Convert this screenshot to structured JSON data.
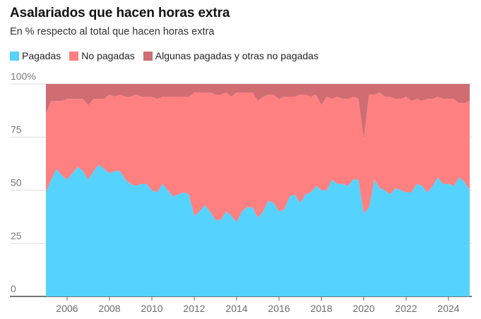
{
  "title": "Asalariados que hacen horas extra",
  "subtitle": "En % respecto al total que hacen horas extra",
  "colors": {
    "pagadas": "#56d2fe",
    "no_pagadas": "#ff8080",
    "algunas": "#cf6d73",
    "grid": "#dddddd",
    "axis": "#222222"
  },
  "chart_data": {
    "type": "area",
    "stacked": true,
    "ylim": [
      0,
      100
    ],
    "yticks": [
      0,
      25,
      50,
      75,
      100
    ],
    "ytick_labels": [
      "0",
      "25",
      "50",
      "75",
      "100%"
    ],
    "xticks": [
      2006,
      2008,
      2010,
      2012,
      2014,
      2016,
      2018,
      2020,
      2022,
      2024
    ],
    "xlim": [
      2004.9,
      2025.4
    ],
    "legend": [
      "Pagadas",
      "No pagadas",
      "Algunas pagadas y otras no pagadas"
    ],
    "x": [
      2005.0,
      2005.25,
      2005.5,
      2005.75,
      2006.0,
      2006.25,
      2006.5,
      2006.75,
      2007.0,
      2007.25,
      2007.5,
      2007.75,
      2008.0,
      2008.25,
      2008.5,
      2008.75,
      2009.0,
      2009.25,
      2009.5,
      2009.75,
      2010.0,
      2010.25,
      2010.5,
      2010.75,
      2011.0,
      2011.25,
      2011.5,
      2011.75,
      2012.0,
      2012.25,
      2012.5,
      2012.75,
      2013.0,
      2013.25,
      2013.5,
      2013.75,
      2014.0,
      2014.25,
      2014.5,
      2014.75,
      2015.0,
      2015.25,
      2015.5,
      2015.75,
      2016.0,
      2016.25,
      2016.5,
      2016.75,
      2017.0,
      2017.25,
      2017.5,
      2017.75,
      2018.0,
      2018.25,
      2018.5,
      2018.75,
      2019.0,
      2019.25,
      2019.5,
      2019.75,
      2020.0,
      2020.25,
      2020.5,
      2020.75,
      2021.0,
      2021.25,
      2021.5,
      2021.75,
      2022.0,
      2022.25,
      2022.5,
      2022.75,
      2023.0,
      2023.25,
      2023.5,
      2023.75,
      2024.0,
      2024.25,
      2024.5,
      2024.75,
      2025.0
    ],
    "series": [
      {
        "name": "Pagadas",
        "values": [
          49,
          55,
          60,
          57,
          55,
          58,
          61,
          59,
          55,
          59,
          62,
          60,
          58,
          59,
          59,
          55,
          53,
          52,
          53,
          53,
          50,
          49,
          53,
          50,
          47,
          48,
          49,
          48,
          38,
          40,
          43,
          40,
          36,
          36,
          40,
          38,
          35,
          40,
          42,
          42,
          37,
          40,
          45,
          44,
          40,
          41,
          47,
          48,
          44,
          48,
          49,
          52,
          50,
          50,
          55,
          53,
          53,
          52,
          55,
          55,
          39,
          42,
          55,
          51,
          50,
          48,
          51,
          50,
          49,
          49,
          53,
          52,
          49,
          52,
          56,
          53,
          53,
          52,
          56,
          54,
          50
        ]
      },
      {
        "name": "No pagadas",
        "values": [
          37,
          37,
          32,
          35,
          38,
          35,
          32,
          34,
          35,
          34,
          31,
          33,
          37,
          35,
          36,
          39,
          41,
          43,
          41,
          41,
          44,
          44,
          41,
          44,
          47,
          46,
          45,
          46,
          58,
          56,
          53,
          56,
          59,
          59,
          56,
          56,
          61,
          56,
          54,
          54,
          55,
          54,
          50,
          51,
          53,
          53,
          47,
          46,
          51,
          47,
          45,
          43,
          40,
          44,
          38,
          41,
          40,
          41,
          39,
          38,
          35,
          53,
          40,
          45,
          44,
          46,
          42,
          43,
          45,
          43,
          40,
          40,
          44,
          41,
          38,
          40,
          40,
          41,
          35,
          37,
          42
        ]
      },
      {
        "name": "Algunas pagadas y otras no pagadas",
        "values": [
          14,
          8,
          8,
          8,
          7,
          7,
          7,
          7,
          10,
          7,
          7,
          7,
          5,
          6,
          5,
          6,
          6,
          5,
          6,
          6,
          6,
          7,
          6,
          6,
          6,
          6,
          6,
          6,
          4,
          4,
          4,
          4,
          5,
          5,
          4,
          6,
          4,
          4,
          4,
          4,
          8,
          6,
          5,
          5,
          7,
          6,
          6,
          6,
          5,
          5,
          6,
          5,
          10,
          6,
          7,
          6,
          7,
          7,
          6,
          7,
          26,
          5,
          5,
          4,
          6,
          6,
          7,
          7,
          6,
          8,
          7,
          8,
          7,
          7,
          6,
          7,
          7,
          7,
          9,
          9,
          8
        ]
      }
    ]
  }
}
